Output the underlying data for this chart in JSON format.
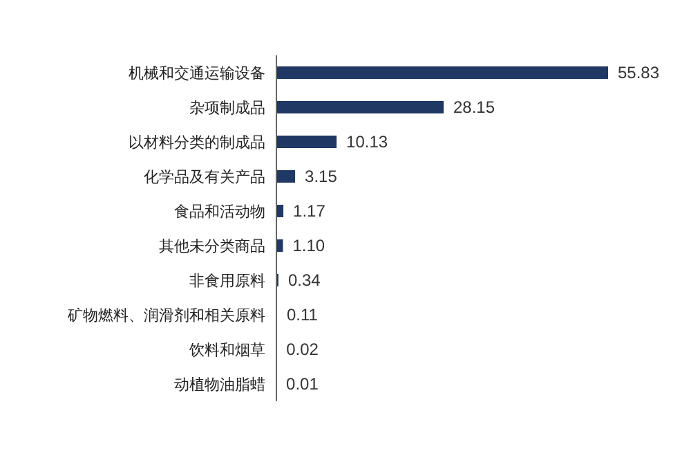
{
  "chart_data": {
    "type": "bar",
    "orientation": "horizontal",
    "categories": [
      "机械和交通运输设备",
      "杂项制成品",
      "以材料分类的制成品",
      "化学品及有关产品",
      "食品和活动物",
      "其他未分类商品",
      "非食用原料",
      "矿物燃料、润滑剂和相关原料",
      "饮料和烟草",
      "动植物油脂蜡"
    ],
    "values": [
      55.83,
      28.15,
      10.13,
      3.15,
      1.17,
      1.1,
      0.34,
      0.11,
      0.02,
      0.01
    ],
    "value_labels": [
      "55.83",
      "28.15",
      "10.13",
      "3.15",
      "1.17",
      "1.10",
      "0.34",
      "0.11",
      "0.02",
      "0.01"
    ],
    "color": "#1f3864",
    "tick_labels": "y"
  }
}
